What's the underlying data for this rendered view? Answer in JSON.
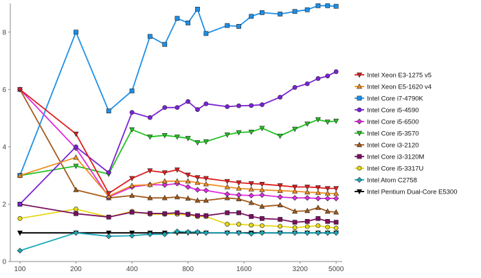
{
  "chart_data": {
    "type": "line",
    "title": "",
    "xlabel": "",
    "ylabel": "",
    "x_scale": "log2",
    "x_ticks": [
      100,
      200,
      400,
      800,
      1600,
      3200,
      5000
    ],
    "x_tick_labels": [
      "100",
      "200",
      "400",
      "800",
      "1600",
      "3200",
      "5000"
    ],
    "ylim": [
      0,
      9
    ],
    "y_ticks": [
      0,
      2,
      4,
      6,
      8
    ],
    "y_tick_labels": [
      "0",
      "2",
      "4",
      "6",
      "8"
    ],
    "grid": false,
    "legend_position": "right",
    "x": [
      100,
      200,
      300,
      400,
      500,
      600,
      700,
      800,
      900,
      1000,
      1300,
      1500,
      1750,
      2000,
      2500,
      3000,
      3500,
      4000,
      4500,
      5000
    ],
    "series": [
      {
        "name": "Intel Xeon E3-1275 v5",
        "color": "#dd1c1c",
        "marker": "triangle-down",
        "values": [
          6.0,
          4.45,
          2.38,
          2.9,
          3.17,
          3.1,
          3.2,
          3.02,
          2.93,
          2.9,
          2.8,
          2.75,
          2.72,
          2.7,
          2.65,
          2.6,
          2.6,
          2.58,
          2.55,
          2.55
        ]
      },
      {
        "name": "Intel Xeon E5-1620 v4",
        "color": "#f08c20",
        "marker": "triangle-up",
        "values": [
          3.0,
          3.63,
          2.28,
          2.65,
          2.68,
          2.8,
          2.8,
          2.8,
          2.75,
          2.7,
          2.6,
          2.55,
          2.52,
          2.5,
          2.47,
          2.45,
          2.42,
          2.4,
          2.38,
          2.37
        ]
      },
      {
        "name": "Intel Core i7-4790K",
        "color": "#1e8fe6",
        "marker": "square",
        "values": [
          3.0,
          8.0,
          5.25,
          5.95,
          7.85,
          7.57,
          8.48,
          8.32,
          8.8,
          7.95,
          8.23,
          8.2,
          8.55,
          8.68,
          8.63,
          8.72,
          8.78,
          8.92,
          8.92,
          8.9
        ]
      },
      {
        "name": "Intel Core i5-4590",
        "color": "#7a22d6",
        "marker": "circle",
        "values": [
          2.0,
          4.0,
          3.1,
          5.2,
          5.02,
          5.37,
          5.37,
          5.58,
          5.3,
          5.5,
          5.4,
          5.43,
          5.44,
          5.47,
          5.73,
          6.07,
          6.2,
          6.38,
          6.47,
          6.62
        ]
      },
      {
        "name": "Intel Core i5-6500",
        "color": "#e02ae0",
        "marker": "diamond",
        "values": [
          6.0,
          3.95,
          2.25,
          2.6,
          2.68,
          2.67,
          2.72,
          2.6,
          2.5,
          2.48,
          2.35,
          2.32,
          2.3,
          2.32,
          2.25,
          2.22,
          2.22,
          2.2,
          2.2,
          2.2
        ]
      },
      {
        "name": "Intel Core i5-3570",
        "color": "#22c022",
        "marker": "triangle-down",
        "values": [
          3.0,
          3.33,
          3.05,
          4.6,
          4.35,
          4.4,
          4.35,
          4.3,
          4.15,
          4.18,
          4.42,
          4.5,
          4.52,
          4.65,
          4.38,
          4.62,
          4.8,
          4.95,
          4.87,
          4.9
        ]
      },
      {
        "name": "Intel Core i3-2120",
        "color": "#a45a1a",
        "marker": "triangle-up",
        "values": [
          6.0,
          2.5,
          2.22,
          2.3,
          2.22,
          2.22,
          2.25,
          2.2,
          2.13,
          2.13,
          2.22,
          2.18,
          2.05,
          1.92,
          1.97,
          1.75,
          1.77,
          1.88,
          1.75,
          1.72
        ]
      },
      {
        "name": "Intel Core i3-3120M",
        "color": "#7a1060",
        "marker": "square",
        "values": [
          2.0,
          1.67,
          1.55,
          1.72,
          1.68,
          1.67,
          1.7,
          1.65,
          1.6,
          1.6,
          1.7,
          1.7,
          1.57,
          1.5,
          1.47,
          1.37,
          1.4,
          1.5,
          1.4,
          1.37
        ]
      },
      {
        "name": "Intel Core i5-3317U",
        "color": "#e6d81a",
        "marker": "circle",
        "values": [
          1.5,
          1.83,
          1.55,
          1.75,
          1.65,
          1.65,
          1.65,
          1.63,
          1.57,
          1.57,
          1.3,
          1.3,
          1.27,
          1.25,
          1.23,
          1.18,
          1.22,
          1.25,
          1.2,
          1.17
        ]
      },
      {
        "name": "Intel Atom C2758",
        "color": "#1aa8b8",
        "marker": "diamond",
        "values": [
          0.38,
          1.0,
          0.88,
          0.9,
          0.95,
          0.95,
          1.05,
          1.03,
          1.03,
          1.0,
          1.0,
          1.0,
          0.97,
          1.0,
          1.0,
          1.0,
          1.0,
          1.0,
          1.0,
          1.0
        ]
      },
      {
        "name": "Intel Pentium Dual-Core E5300",
        "color": "#000000",
        "marker": "triangle-down",
        "values": [
          1.0,
          1.0,
          1.0,
          1.0,
          1.0,
          1.0,
          1.0,
          1.0,
          1.0,
          1.0,
          1.0,
          1.0,
          1.0,
          1.0,
          1.0,
          1.0,
          1.0,
          1.0,
          1.0,
          1.0
        ]
      }
    ]
  }
}
